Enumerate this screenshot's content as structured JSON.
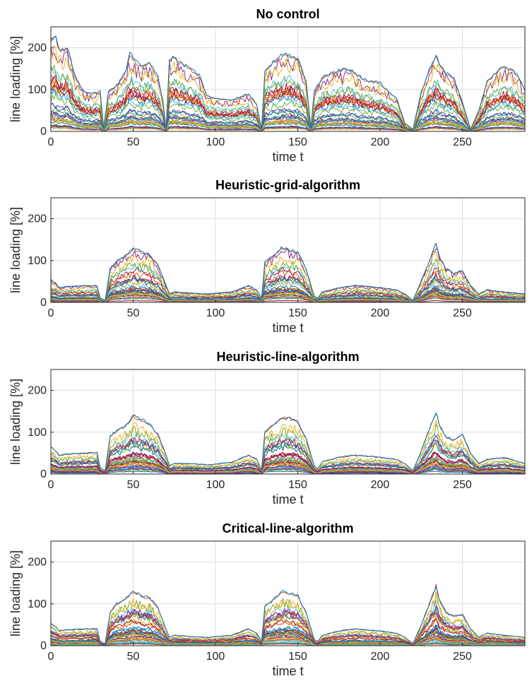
{
  "chart_data": [
    {
      "type": "line",
      "title": "No control",
      "xlabel": "time t",
      "ylabel": "line loading [%]",
      "xlim": [
        0,
        288
      ],
      "ylim": [
        0,
        250
      ],
      "xticks": [
        0,
        50,
        100,
        150,
        200,
        250
      ],
      "yticks": [
        0,
        100,
        200
      ],
      "grid": true,
      "series_count": 40,
      "envelope": {
        "x": [
          0,
          3,
          5,
          10,
          15,
          20,
          25,
          30,
          32,
          35,
          40,
          45,
          48,
          50,
          55,
          60,
          65,
          68,
          70,
          72,
          75,
          80,
          85,
          90,
          95,
          100,
          110,
          120,
          125,
          128,
          130,
          135,
          140,
          145,
          150,
          155,
          158,
          160,
          165,
          170,
          175,
          180,
          185,
          190,
          200,
          210,
          215,
          220,
          225,
          230,
          234,
          236,
          240,
          245,
          250,
          255,
          260,
          265,
          270,
          275,
          280,
          285,
          288
        ],
        "values": [
          220,
          225,
          195,
          200,
          130,
          95,
          90,
          95,
          8,
          95,
          110,
          140,
          185,
          175,
          155,
          165,
          130,
          75,
          5,
          170,
          178,
          160,
          150,
          135,
          85,
          80,
          75,
          90,
          65,
          5,
          145,
          165,
          180,
          185,
          175,
          120,
          8,
          95,
          130,
          140,
          145,
          150,
          140,
          125,
          115,
          80,
          20,
          5,
          95,
          150,
          180,
          160,
          140,
          125,
          70,
          5,
          50,
          120,
          140,
          155,
          150,
          125,
          100
        ]
      }
    },
    {
      "type": "line",
      "title": "Heuristic-grid-algorithm",
      "xlabel": "time t",
      "ylabel": "line loading [%]",
      "xlim": [
        0,
        288
      ],
      "ylim": [
        0,
        250
      ],
      "xticks": [
        0,
        50,
        100,
        150,
        200,
        250
      ],
      "yticks": [
        0,
        100,
        200
      ],
      "grid": true,
      "series_count": 40,
      "envelope": {
        "x": [
          0,
          3,
          5,
          10,
          20,
          28,
          30,
          33,
          36,
          40,
          45,
          50,
          55,
          60,
          65,
          70,
          72,
          75,
          85,
          95,
          110,
          120,
          125,
          128,
          130,
          135,
          140,
          145,
          150,
          155,
          160,
          162,
          165,
          175,
          185,
          200,
          210,
          215,
          220,
          225,
          230,
          234,
          236,
          240,
          245,
          250,
          255,
          260,
          265,
          275,
          288
        ],
        "values": [
          55,
          45,
          35,
          38,
          40,
          40,
          10,
          5,
          80,
          100,
          110,
          130,
          120,
          115,
          90,
          40,
          20,
          25,
          22,
          20,
          25,
          40,
          30,
          10,
          95,
          110,
          130,
          125,
          120,
          80,
          15,
          10,
          25,
          35,
          40,
          35,
          30,
          20,
          5,
          50,
          100,
          145,
          110,
          80,
          70,
          75,
          40,
          20,
          30,
          25,
          20
        ]
      }
    },
    {
      "type": "line",
      "title": "Heuristic-line-algorithm",
      "xlabel": "time t",
      "ylabel": "line loading [%]",
      "xlim": [
        0,
        288
      ],
      "ylim": [
        0,
        250
      ],
      "xticks": [
        0,
        50,
        100,
        150,
        200,
        250
      ],
      "yticks": [
        0,
        100,
        200
      ],
      "grid": true,
      "series_count": 40,
      "envelope": {
        "x": [
          0,
          3,
          5,
          10,
          20,
          28,
          30,
          33,
          36,
          40,
          45,
          50,
          55,
          60,
          65,
          70,
          72,
          75,
          85,
          95,
          110,
          120,
          125,
          128,
          130,
          135,
          140,
          145,
          150,
          155,
          160,
          162,
          165,
          175,
          185,
          200,
          210,
          215,
          220,
          225,
          230,
          234,
          236,
          240,
          245,
          250,
          255,
          260,
          265,
          275,
          288
        ],
        "values": [
          65,
          55,
          45,
          48,
          50,
          52,
          15,
          8,
          90,
          105,
          115,
          140,
          130,
          120,
          95,
          45,
          20,
          25,
          25,
          22,
          28,
          45,
          35,
          10,
          100,
          120,
          135,
          135,
          125,
          85,
          20,
          12,
          30,
          40,
          45,
          40,
          35,
          25,
          8,
          55,
          110,
          150,
          115,
          90,
          80,
          95,
          50,
          25,
          35,
          40,
          25
        ]
      }
    },
    {
      "type": "line",
      "title": "Critical-line-algorithm",
      "xlabel": "time t",
      "ylabel": "line loading [%]",
      "xlim": [
        0,
        288
      ],
      "ylim": [
        0,
        250
      ],
      "xticks": [
        0,
        50,
        100,
        150,
        200,
        250
      ],
      "yticks": [
        0,
        100,
        200
      ],
      "grid": true,
      "series_count": 40,
      "envelope": {
        "x": [
          0,
          3,
          5,
          10,
          20,
          28,
          30,
          33,
          36,
          40,
          45,
          50,
          55,
          60,
          65,
          70,
          72,
          75,
          85,
          95,
          110,
          120,
          125,
          128,
          130,
          135,
          140,
          145,
          150,
          155,
          160,
          162,
          165,
          175,
          185,
          200,
          210,
          215,
          220,
          225,
          230,
          234,
          236,
          240,
          245,
          250,
          255,
          260,
          265,
          275,
          288
        ],
        "values": [
          55,
          45,
          35,
          38,
          40,
          40,
          10,
          5,
          80,
          100,
          110,
          130,
          120,
          115,
          90,
          40,
          20,
          25,
          22,
          20,
          25,
          40,
          30,
          10,
          95,
          110,
          130,
          125,
          120,
          80,
          15,
          10,
          25,
          35,
          40,
          35,
          30,
          20,
          5,
          50,
          100,
          145,
          110,
          80,
          70,
          75,
          40,
          20,
          30,
          25,
          20
        ]
      }
    }
  ],
  "colors": {
    "series_palette": [
      "#0072bd",
      "#d95319",
      "#edb120",
      "#7e2f8e",
      "#77ac30",
      "#4dbeee",
      "#a2142f"
    ],
    "grid": "#dcdcdc",
    "axis": "#262626"
  }
}
